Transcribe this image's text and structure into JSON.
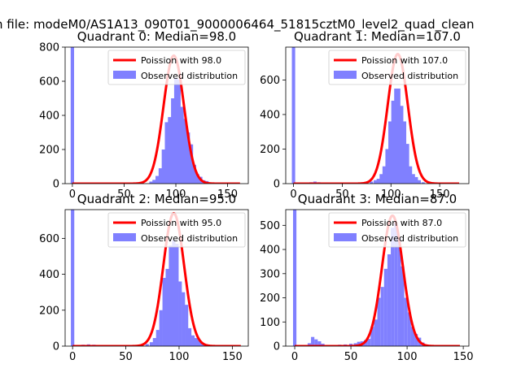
{
  "figure": {
    "suptitle": "n file: modeM0/AS1A13_090T01_9000006464_51815cztM0_level2_quad_clean"
  },
  "chart_data": [
    {
      "type": "bar",
      "title": "Quadrant 0: Median=98.0",
      "xlabel": "",
      "ylabel": "",
      "xlim": [
        -7,
        170
      ],
      "ylim": [
        0,
        800
      ],
      "xticks": [
        0,
        50,
        100,
        150
      ],
      "yticks": [
        0,
        200,
        400,
        600,
        800
      ],
      "hist_color": "#8080ff",
      "fit_color": "#ff0000",
      "legend": {
        "placement": "top-right",
        "fit_label": "Poission with 98.0",
        "hist_label": "Observed distribution"
      },
      "fit": {
        "mean": 98.0,
        "peak": 750,
        "x_range": [
          0,
          162
        ]
      },
      "bin_width": 3.3,
      "bins": [
        [
          0,
          800
        ],
        [
          76,
          12
        ],
        [
          79,
          22
        ],
        [
          82,
          45
        ],
        [
          85,
          90
        ],
        [
          88,
          200
        ],
        [
          91,
          360
        ],
        [
          94,
          390
        ],
        [
          97,
          500
        ],
        [
          100,
          620
        ],
        [
          103,
          610
        ],
        [
          106,
          450
        ],
        [
          109,
          380
        ],
        [
          112,
          300
        ],
        [
          115,
          230
        ],
        [
          118,
          110
        ],
        [
          121,
          55
        ],
        [
          124,
          40
        ],
        [
          127,
          20
        ],
        [
          130,
          15
        ]
      ]
    },
    {
      "type": "bar",
      "title": "Quadrant 1: Median=107.0",
      "xlabel": "",
      "ylabel": "",
      "xlim": [
        -8,
        180
      ],
      "ylim": [
        0,
        790
      ],
      "xticks": [
        0,
        50,
        100,
        150
      ],
      "yticks": [
        0,
        200,
        400,
        600
      ],
      "hist_color": "#8080ff",
      "fit_color": "#ff0000",
      "legend": {
        "placement": "top-right",
        "fit_label": "Poission with 107.0",
        "hist_label": "Observed distribution"
      },
      "fit": {
        "mean": 107.0,
        "peak": 750,
        "x_range": [
          0,
          170
        ]
      },
      "bin_width": 3.4,
      "bins": [
        [
          0,
          790
        ],
        [
          18,
          8
        ],
        [
          22,
          12
        ],
        [
          26,
          8
        ],
        [
          30,
          5
        ],
        [
          35,
          4
        ],
        [
          40,
          5
        ],
        [
          45,
          4
        ],
        [
          50,
          6
        ],
        [
          55,
          5
        ],
        [
          60,
          6
        ],
        [
          65,
          6
        ],
        [
          70,
          6
        ],
        [
          75,
          8
        ],
        [
          80,
          12
        ],
        [
          84,
          20
        ],
        [
          87,
          28
        ],
        [
          90,
          55
        ],
        [
          93,
          100
        ],
        [
          96,
          200
        ],
        [
          99,
          360
        ],
        [
          102,
          480
        ],
        [
          105,
          550
        ],
        [
          108,
          550
        ],
        [
          111,
          450
        ],
        [
          114,
          360
        ],
        [
          117,
          230
        ],
        [
          120,
          100
        ],
        [
          123,
          55
        ],
        [
          126,
          38
        ],
        [
          129,
          20
        ],
        [
          133,
          8
        ]
      ]
    },
    {
      "type": "bar",
      "title": "Quadrant 2: Median=95.0",
      "xlabel": "",
      "ylabel": "",
      "xlim": [
        -7,
        165
      ],
      "ylim": [
        0,
        760
      ],
      "xticks": [
        0,
        50,
        100,
        150
      ],
      "yticks": [
        0,
        200,
        400,
        600
      ],
      "hist_color": "#8080ff",
      "fit_color": "#ff0000",
      "legend": {
        "placement": "top-right",
        "fit_label": "Poission with 95.0",
        "hist_label": "Observed distribution"
      },
      "fit": {
        "mean": 95.0,
        "peak": 740,
        "x_range": [
          0,
          158
        ]
      },
      "bin_width": 3.2,
      "bins": [
        [
          0,
          760
        ],
        [
          10,
          8
        ],
        [
          15,
          10
        ],
        [
          20,
          8
        ],
        [
          25,
          6
        ],
        [
          30,
          5
        ],
        [
          40,
          5
        ],
        [
          50,
          5
        ],
        [
          60,
          5
        ],
        [
          65,
          8
        ],
        [
          70,
          12
        ],
        [
          74,
          22
        ],
        [
          77,
          45
        ],
        [
          80,
          90
        ],
        [
          83,
          200
        ],
        [
          86,
          380
        ],
        [
          89,
          430
        ],
        [
          92,
          560
        ],
        [
          95,
          590
        ],
        [
          98,
          570
        ],
        [
          101,
          360
        ],
        [
          104,
          300
        ],
        [
          107,
          230
        ],
        [
          110,
          100
        ],
        [
          113,
          60
        ],
        [
          116,
          45
        ],
        [
          119,
          35
        ],
        [
          122,
          18
        ],
        [
          126,
          10
        ]
      ]
    },
    {
      "type": "bar",
      "title": "Quadrant 3: Median=87.0",
      "xlabel": "",
      "ylabel": "",
      "xlim": [
        -8,
        155
      ],
      "ylim": [
        0,
        565
      ],
      "xticks": [
        0,
        50,
        100,
        150
      ],
      "yticks": [
        0,
        100,
        200,
        300,
        400,
        500
      ],
      "hist_color": "#8080ff",
      "fit_color": "#ff0000",
      "legend": {
        "placement": "top-right",
        "fit_label": "Poission with 87.0",
        "hist_label": "Observed distribution"
      },
      "fit": {
        "mean": 87.0,
        "peak": 540,
        "x_range": [
          0,
          147
        ]
      },
      "bin_width": 3.0,
      "bins": [
        [
          0,
          565
        ],
        [
          13,
          12
        ],
        [
          16,
          38
        ],
        [
          19,
          28
        ],
        [
          22,
          20
        ],
        [
          25,
          10
        ],
        [
          28,
          5
        ],
        [
          35,
          5
        ],
        [
          40,
          6
        ],
        [
          45,
          7
        ],
        [
          50,
          10
        ],
        [
          54,
          12
        ],
        [
          57,
          18
        ],
        [
          60,
          20
        ],
        [
          63,
          25
        ],
        [
          66,
          30
        ],
        [
          69,
          80
        ],
        [
          72,
          110
        ],
        [
          75,
          200
        ],
        [
          78,
          245
        ],
        [
          81,
          320
        ],
        [
          84,
          380
        ],
        [
          87,
          490
        ],
        [
          90,
          510
        ],
        [
          93,
          450
        ],
        [
          96,
          330
        ],
        [
          99,
          200
        ],
        [
          102,
          140
        ],
        [
          105,
          80
        ],
        [
          108,
          50
        ],
        [
          111,
          35
        ],
        [
          114,
          15
        ]
      ]
    }
  ]
}
